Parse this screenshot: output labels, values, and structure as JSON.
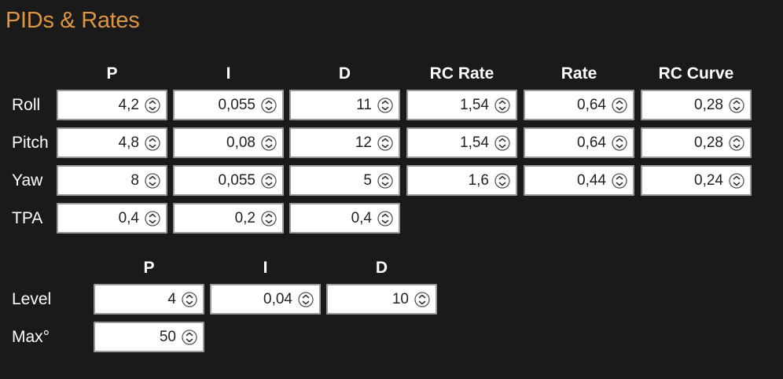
{
  "title": "PIDs & Rates",
  "pid_table": {
    "columns": [
      "P",
      "I",
      "D",
      "RC Rate",
      "Rate",
      "RC Curve"
    ],
    "rows": [
      {
        "label": "Roll",
        "values": [
          "4,2",
          "0,055",
          "11",
          "1,54",
          "0,64",
          "0,28"
        ]
      },
      {
        "label": "Pitch",
        "values": [
          "4,8",
          "0,08",
          "12",
          "1,54",
          "0,64",
          "0,28"
        ]
      },
      {
        "label": "Yaw",
        "values": [
          "8",
          "0,055",
          "5",
          "1,6",
          "0,44",
          "0,24"
        ]
      },
      {
        "label": "TPA",
        "values": [
          "0,4",
          "0,2",
          "0,4"
        ]
      }
    ]
  },
  "level_table": {
    "columns": [
      "P",
      "I",
      "D"
    ],
    "rows": [
      {
        "label": "Level",
        "values": [
          "4",
          "0,04",
          "10"
        ]
      },
      {
        "label": "Max°",
        "values": [
          "50"
        ]
      }
    ]
  },
  "icons": {
    "spinner": "stepper-arrows-icon"
  },
  "colors": {
    "background": "#1a1a1a",
    "title": "#e09540",
    "text": "#ffffff",
    "field_bg": "#ffffff",
    "field_border": "#9a9a9a"
  }
}
